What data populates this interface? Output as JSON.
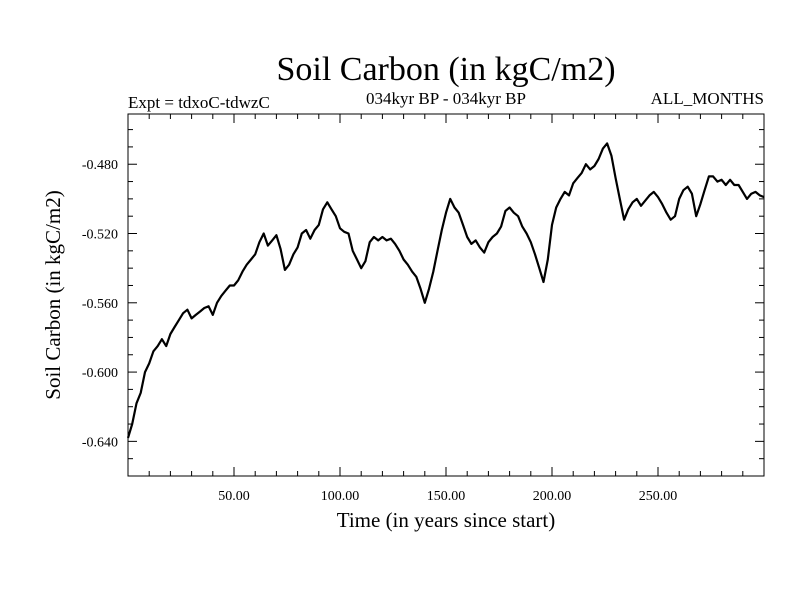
{
  "chart_data": {
    "type": "line",
    "title": "Soil Carbon (in kgC/m2)",
    "subtitle_left": "Expt = tdxoC-tdwzC",
    "subtitle_center": "034kyr BP - 034kyr BP",
    "subtitle_right": "ALL_MONTHS",
    "xlabel": "Time (in years since start)",
    "ylabel": "Soil Carbon (in kgC/m2)",
    "xlim": [
      0,
      300
    ],
    "ylim": [
      -0.66,
      -0.451
    ],
    "xticks": [
      50,
      100,
      150,
      200,
      250
    ],
    "xtick_labels": [
      "50.00",
      "100.00",
      "150.00",
      "200.00",
      "250.00"
    ],
    "yticks": [
      -0.64,
      -0.6,
      -0.56,
      -0.52,
      -0.48
    ],
    "ytick_labels": [
      "-0.640",
      "-0.600",
      "-0.560",
      "-0.520",
      "-0.480"
    ],
    "grid": false,
    "line_color": "#000000",
    "series": [
      {
        "x": [
          0,
          2,
          4,
          6,
          8,
          10,
          12,
          14,
          16,
          18,
          20,
          22,
          24,
          26,
          28,
          30,
          32,
          34,
          36,
          38,
          40,
          42,
          44,
          46,
          48,
          50,
          52,
          54,
          56,
          58,
          60,
          62,
          64,
          66,
          68,
          70,
          72,
          74,
          76,
          78,
          80,
          82,
          84,
          86,
          88,
          90,
          92,
          94,
          96,
          98,
          100,
          102,
          104,
          106,
          108,
          110,
          112,
          114,
          116,
          118,
          120,
          122,
          124,
          126,
          128,
          130,
          132,
          134,
          136,
          138,
          140,
          142,
          144,
          146,
          148,
          150,
          152,
          154,
          156,
          158,
          160,
          162,
          164,
          166,
          168,
          170,
          172,
          174,
          176,
          178,
          180,
          182,
          184,
          186,
          188,
          190,
          192,
          194,
          196,
          198,
          200,
          202,
          204,
          206,
          208,
          210,
          212,
          214,
          216,
          218,
          220,
          222,
          224,
          226,
          228,
          230,
          232,
          234,
          236,
          238,
          240,
          242,
          244,
          246,
          248,
          250,
          252,
          254,
          256,
          258,
          260,
          262,
          264,
          266,
          268,
          270,
          272,
          274,
          276,
          278,
          280,
          282,
          284,
          286,
          288,
          290,
          292,
          294,
          296,
          298,
          300
        ],
        "values": [
          -0.638,
          -0.63,
          -0.618,
          -0.612,
          -0.6,
          -0.595,
          -0.588,
          -0.585,
          -0.581,
          -0.585,
          -0.578,
          -0.574,
          -0.57,
          -0.566,
          -0.564,
          -0.569,
          -0.567,
          -0.565,
          -0.563,
          -0.562,
          -0.567,
          -0.56,
          -0.556,
          -0.553,
          -0.55,
          -0.55,
          -0.547,
          -0.542,
          -0.538,
          -0.535,
          -0.532,
          -0.525,
          -0.52,
          -0.527,
          -0.524,
          -0.521,
          -0.529,
          -0.541,
          -0.538,
          -0.532,
          -0.528,
          -0.52,
          -0.518,
          -0.523,
          -0.518,
          -0.515,
          -0.506,
          -0.502,
          -0.506,
          -0.51,
          -0.517,
          -0.519,
          -0.52,
          -0.53,
          -0.535,
          -0.54,
          -0.536,
          -0.525,
          -0.522,
          -0.524,
          -0.522,
          -0.524,
          -0.523,
          -0.526,
          -0.53,
          -0.535,
          -0.538,
          -0.542,
          -0.545,
          -0.552,
          -0.56,
          -0.552,
          -0.542,
          -0.53,
          -0.518,
          -0.508,
          -0.5,
          -0.505,
          -0.508,
          -0.515,
          -0.522,
          -0.526,
          -0.524,
          -0.528,
          -0.531,
          -0.525,
          -0.522,
          -0.52,
          -0.516,
          -0.507,
          -0.505,
          -0.508,
          -0.51,
          -0.516,
          -0.52,
          -0.525,
          -0.532,
          -0.54,
          -0.548,
          -0.535,
          -0.515,
          -0.505,
          -0.5,
          -0.496,
          -0.498,
          -0.491,
          -0.488,
          -0.485,
          -0.48,
          -0.483,
          -0.481,
          -0.477,
          -0.471,
          -0.468,
          -0.475,
          -0.488,
          -0.5,
          -0.512,
          -0.506,
          -0.502,
          -0.5,
          -0.504,
          -0.501,
          -0.498,
          -0.496,
          -0.499,
          -0.503,
          -0.508,
          -0.512,
          -0.51,
          -0.5,
          -0.495,
          -0.493,
          -0.497,
          -0.51,
          -0.503,
          -0.495,
          -0.487,
          -0.487,
          -0.49,
          -0.489,
          -0.492,
          -0.489,
          -0.492,
          -0.492,
          -0.496,
          -0.5,
          -0.497,
          -0.496,
          -0.498,
          -0.499
        ]
      }
    ]
  }
}
